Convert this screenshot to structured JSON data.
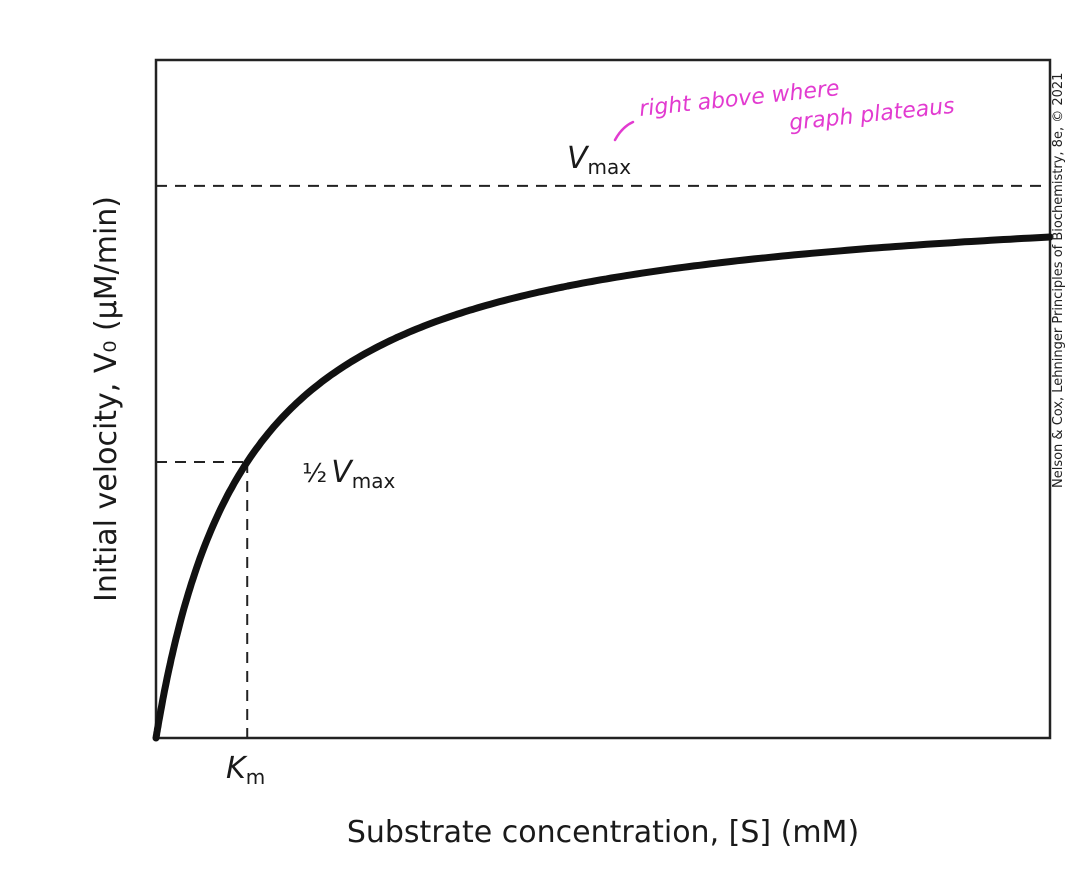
{
  "chart_data": {
    "type": "line",
    "xlabel": "Substrate concentration, [S] (mM)",
    "ylabel": "Initial velocity, V₀ (μM/min)",
    "xlim": [
      0,
      9.8
    ],
    "ylim": [
      0,
      1.228
    ],
    "grid": false,
    "legend": "none",
    "curve": {
      "model": "Michaelis-Menten",
      "vmax": 1.0,
      "km": 1.0,
      "x": [
        0,
        0.25,
        0.5,
        1,
        2,
        3,
        4,
        5,
        6,
        7,
        8,
        9,
        9.8
      ],
      "y": [
        0,
        0.2,
        0.333,
        0.5,
        0.667,
        0.75,
        0.8,
        0.833,
        0.857,
        0.875,
        0.889,
        0.9,
        0.907
      ]
    },
    "reference_lines": {
      "vmax": {
        "y": 1.0,
        "label_main": "V",
        "label_sub": "max"
      },
      "half_vmax": {
        "y": 0.5,
        "label_frac": "½",
        "label_main": "V",
        "label_sub": "max"
      },
      "km": {
        "x": 1.0,
        "label_main": "K",
        "label_sub": "m"
      }
    },
    "annotation": {
      "lines": [
        "right above where",
        "graph plateaus"
      ],
      "color": "#e23bd0"
    },
    "credit": "Nelson & Cox, Lehninger Principles of Biochemistry, 8e, © 2021"
  }
}
